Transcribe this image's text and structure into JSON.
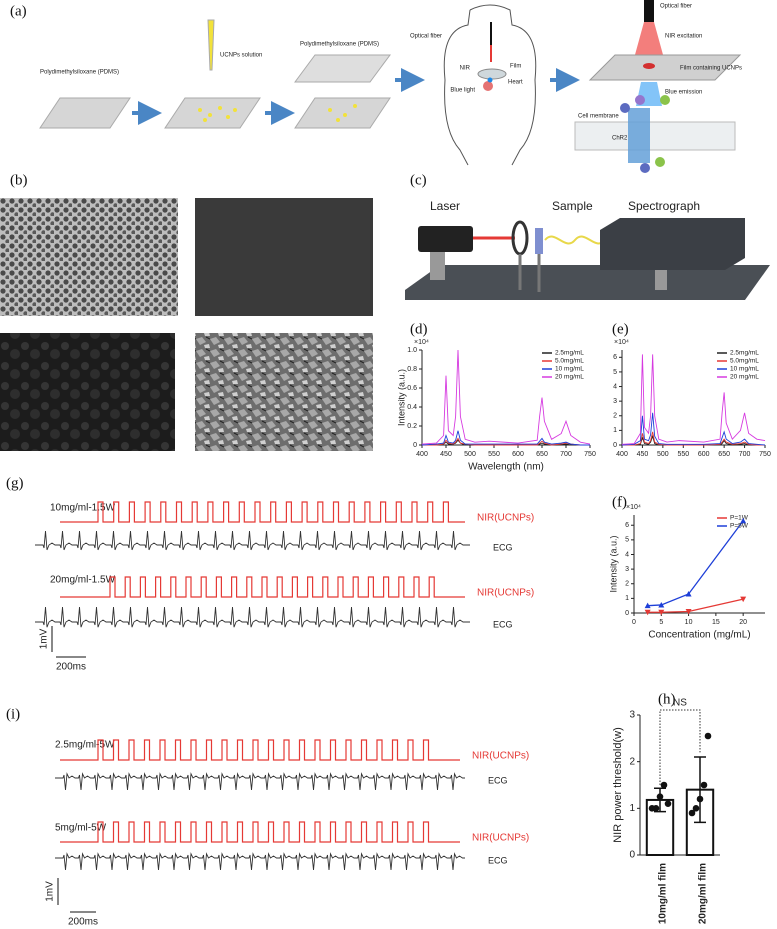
{
  "panel_labels": [
    "(a)",
    "(b)",
    "(c)",
    "(d)",
    "(e)",
    "(f)",
    "(g)",
    "(h)",
    "(i)"
  ],
  "schematic": {
    "pdms_1": "Polydimethylsiloxane (PDMS)",
    "ucnps_solution": "UCNPs solution",
    "pdms_2": "Polydimethylsiloxane (PDMS)",
    "optical_fiber_1": "Optical fiber",
    "nir": "NIR",
    "film": "Film",
    "blue_light": "Blue light",
    "heart": "Heart",
    "optical_fiber_2": "Optical fiber",
    "nir_excitation": "NIR excitation",
    "film_ucnps": "Film containing UCNPs",
    "blue_emission": "Blue emission",
    "cell_membrane": "Cell membrane",
    "chr2": "ChR2"
  },
  "setup": {
    "laser": "Laser",
    "sample": "Sample",
    "spectrograph": "Spectrograph"
  },
  "traces_g": {
    "rows": [
      {
        "condition": "10mg/ml-1.5W",
        "stim": "NIR(UCNPs)",
        "ecg": "ECG"
      },
      {
        "condition": "20mg/ml-1.5W",
        "stim": "NIR(UCNPs)",
        "ecg": "ECG"
      }
    ],
    "scale_v": "1mV",
    "scale_t": "200ms"
  },
  "traces_i": {
    "rows": [
      {
        "condition": "2.5mg/ml-5W",
        "stim": "NIR(UCNPs)",
        "ecg": "ECG"
      },
      {
        "condition": "5mg/ml-5W",
        "stim": "NIR(UCNPs)",
        "ecg": "ECG"
      }
    ],
    "scale_v": "1mV",
    "scale_t": "200ms"
  },
  "chart_data": [
    {
      "type": "line",
      "y_multiplier": "×10⁴",
      "ylabel": "Intensity (a.u.)",
      "xlabel": "Wavelength (nm)",
      "x": [
        400,
        430,
        445,
        450,
        455,
        465,
        470,
        475,
        480,
        490,
        510,
        540,
        600,
        640,
        645,
        650,
        655,
        670,
        690,
        700,
        710,
        730,
        750
      ],
      "xlim": [
        400,
        750
      ],
      "xticks": [
        400,
        450,
        500,
        550,
        600,
        650,
        700,
        750
      ],
      "ylim": [
        0,
        1
      ],
      "yticks": [
        0,
        0.2,
        0.4,
        0.6,
        0.8,
        {
          "value": 1,
          "label": "1.0"
        }
      ],
      "series": [
        {
          "name": "2.5mg/mL",
          "color": "#222222",
          "values": [
            0,
            0,
            0.01,
            0.03,
            0.01,
            0.01,
            0.02,
            0.05,
            0.02,
            0,
            0,
            0,
            0,
            0,
            0.01,
            0.02,
            0.01,
            0,
            0.01,
            0.01,
            0,
            0,
            0
          ]
        },
        {
          "name": "5.0mg/mL",
          "color": "#e53935",
          "values": [
            0,
            0,
            0.01,
            0.05,
            0.02,
            0.01,
            0.03,
            0.07,
            0.02,
            0.01,
            0,
            0,
            0,
            0,
            0.02,
            0.04,
            0.02,
            0,
            0.01,
            0.02,
            0.01,
            0,
            0
          ]
        },
        {
          "name": "10 mg/mL",
          "color": "#1e3fd8",
          "values": [
            0,
            0.01,
            0.02,
            0.1,
            0.03,
            0.02,
            0.05,
            0.15,
            0.05,
            0.01,
            0.01,
            0.01,
            0.01,
            0.01,
            0.04,
            0.07,
            0.03,
            0.01,
            0.02,
            0.03,
            0.01,
            0,
            0
          ]
        },
        {
          "name": "20 mg/mL",
          "color": "#d63ae0",
          "values": [
            0.01,
            0.02,
            0.1,
            0.73,
            0.15,
            0.1,
            0.3,
            1.0,
            0.3,
            0.06,
            0.03,
            0.04,
            0.02,
            0.05,
            0.3,
            0.5,
            0.25,
            0.06,
            0.12,
            0.25,
            0.1,
            0.03,
            0.01
          ]
        }
      ],
      "legend": "upper right"
    },
    {
      "type": "line",
      "y_multiplier": "×10⁴",
      "x": [
        400,
        430,
        445,
        450,
        455,
        465,
        470,
        475,
        480,
        490,
        510,
        540,
        600,
        640,
        645,
        650,
        655,
        670,
        690,
        700,
        710,
        730,
        750
      ],
      "xlim": [
        400,
        750
      ],
      "xticks": [
        400,
        450,
        500,
        550,
        600,
        650,
        700,
        750
      ],
      "ylim": [
        0,
        6.5
      ],
      "yticks": [
        0,
        1,
        2,
        3,
        4,
        5,
        6
      ],
      "series": [
        {
          "name": "2.5mg/mL",
          "color": "#222222",
          "values": [
            0,
            0,
            0.05,
            0.5,
            0.1,
            0.05,
            0.2,
            0.6,
            0.1,
            0,
            0,
            0,
            0,
            0,
            0.1,
            0.3,
            0.1,
            0,
            0.05,
            0.1,
            0,
            0,
            0
          ]
        },
        {
          "name": "5.0mg/mL",
          "color": "#e53935",
          "values": [
            0,
            0,
            0.1,
            0.8,
            0.2,
            0.1,
            0.3,
            0.9,
            0.2,
            0.05,
            0,
            0,
            0,
            0.05,
            0.2,
            0.4,
            0.2,
            0.05,
            0.1,
            0.2,
            0.05,
            0,
            0
          ]
        },
        {
          "name": "10 mg/mL",
          "color": "#1e3fd8",
          "values": [
            0,
            0.05,
            0.3,
            2.0,
            0.4,
            0.3,
            0.7,
            2.2,
            0.6,
            0.1,
            0.05,
            0.05,
            0.05,
            0.1,
            0.5,
            0.9,
            0.4,
            0.1,
            0.2,
            0.4,
            0.1,
            0.05,
            0
          ]
        },
        {
          "name": "20 mg/mL",
          "color": "#d63ae0",
          "values": [
            0.05,
            0.1,
            0.8,
            6.2,
            1.2,
            0.8,
            2,
            6.2,
            2,
            0.4,
            0.2,
            0.3,
            0.2,
            0.4,
            2.2,
            3.6,
            1.5,
            0.4,
            1,
            2.2,
            0.8,
            0.4,
            0.3
          ]
        }
      ],
      "legend": "upper right"
    },
    {
      "type": "scatter",
      "y_multiplier": "×10⁴",
      "ylabel": "Intensity (a.u.)",
      "xlabel": "Concentration (mg/mL)",
      "xlim": [
        0,
        24
      ],
      "xticks": [
        0,
        5,
        10,
        15,
        20
      ],
      "ylim": [
        0,
        6.7
      ],
      "yticks": [
        0,
        1,
        2,
        3,
        4,
        5,
        6
      ],
      "series": [
        {
          "name": "P=1W",
          "color": "#e53935",
          "marker": "triangle-down",
          "x": [
            2.5,
            5,
            10,
            20
          ],
          "values": [
            0.05,
            0.05,
            0.1,
            0.95
          ]
        },
        {
          "name": "P=5W",
          "color": "#1e3fd8",
          "marker": "triangle-up",
          "x": [
            2.5,
            5,
            10,
            20
          ],
          "values": [
            0.5,
            0.55,
            1.3,
            6.3
          ]
        }
      ],
      "legend": "upper right"
    },
    {
      "type": "bar",
      "ylabel": "NIR power threshold(w)",
      "annotation": "NS",
      "categories": [
        "10mg/ml film",
        "20mg/ml film"
      ],
      "values": [
        1.18,
        1.4
      ],
      "errors": [
        0.25,
        0.7
      ],
      "points": [
        [
          1.0,
          1.0,
          1.25,
          1.5,
          1.1
        ],
        [
          0.9,
          1.0,
          1.2,
          1.5,
          2.55
        ]
      ],
      "color": "#ffffff",
      "ylim": [
        0,
        3
      ],
      "yticks": [
        0,
        1,
        2,
        3
      ]
    }
  ]
}
